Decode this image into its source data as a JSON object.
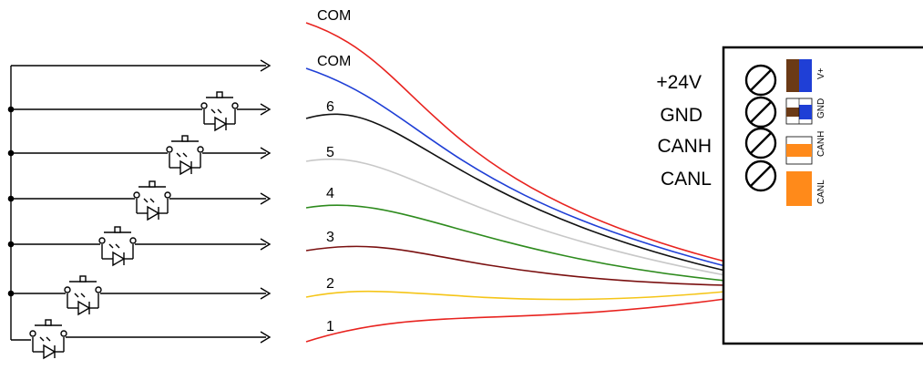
{
  "wires": [
    {
      "label": "COM",
      "color": "#e8231f"
    },
    {
      "label": "COM",
      "color": "#1f3fd6"
    },
    {
      "label": "6",
      "color": "#111111"
    },
    {
      "label": "5",
      "color": "#c8c8c8"
    },
    {
      "label": "4",
      "color": "#2e8b1e"
    },
    {
      "label": "3",
      "color": "#7a1010"
    },
    {
      "label": "2",
      "color": "#f5c518"
    },
    {
      "label": "1",
      "color": "#e8231f"
    }
  ],
  "module": {
    "terminals": [
      "+24V",
      "GND",
      "CANH",
      "CANL"
    ],
    "pins": [
      {
        "label": "V+",
        "colors": [
          "#6b3a16",
          "#1f3fd6"
        ],
        "pattern": "solid"
      },
      {
        "label": "GND",
        "colors": [
          "#6b3a16",
          "#1f3fd6"
        ],
        "pattern": "striped"
      },
      {
        "label": "CANH",
        "colors": [
          "#ff8a1a"
        ],
        "pattern": "striped"
      },
      {
        "label": "CANL",
        "colors": [
          "#ff8a1a"
        ],
        "pattern": "solid"
      }
    ]
  },
  "switch_count": 6
}
